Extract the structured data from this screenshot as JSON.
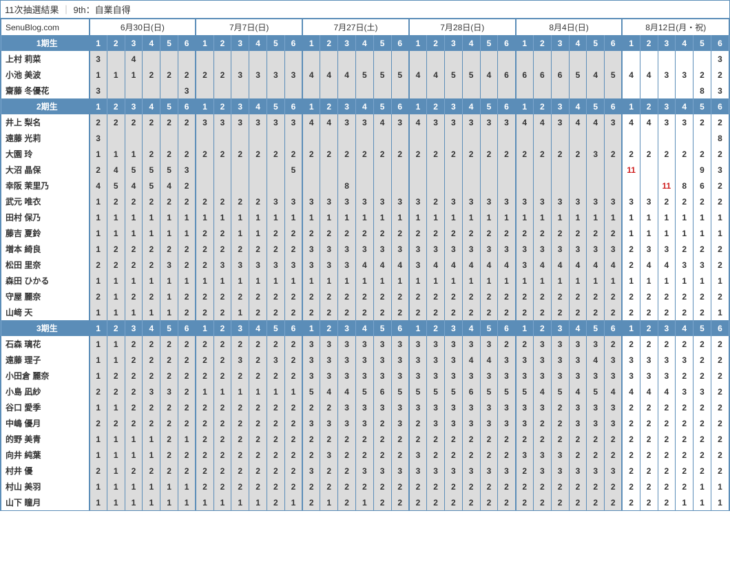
{
  "title_left": "11次抽選結果",
  "title_right": "9th：自業自得",
  "blog": "SenuBlog.com",
  "dates": [
    "6月30日(日)",
    "7月7日(日)",
    "7月27日(土)",
    "7月28日(日)",
    "8月4日(日)",
    "8月12日(月・祝)"
  ],
  "cols_per_date": 6,
  "white_date_index": 5,
  "generations": [
    {
      "label": "1期生",
      "members": [
        {
          "name": "上村 莉菜",
          "vals": [
            "3",
            "",
            "4",
            "",
            "",
            "",
            "",
            "",
            "",
            "",
            "",
            "",
            "",
            "",
            "",
            "",
            "",
            "",
            "",
            "",
            "",
            "",
            "",
            "",
            "",
            "",
            "",
            "",
            "",
            "",
            "",
            "",
            "",
            "",
            "",
            "3"
          ]
        },
        {
          "name": "小池 美波",
          "vals": [
            "1",
            "1",
            "1",
            "2",
            "2",
            "2",
            "2",
            "2",
            "3",
            "3",
            "3",
            "3",
            "4",
            "4",
            "4",
            "5",
            "5",
            "5",
            "4",
            "4",
            "5",
            "5",
            "4",
            "6",
            "6",
            "6",
            "6",
            "5",
            "4",
            "5",
            "4",
            "4",
            "3",
            "3",
            "2",
            "2"
          ]
        },
        {
          "name": "齋藤 冬優花",
          "vals": [
            "3",
            "",
            "",
            "",
            "",
            "3",
            "",
            "",
            "",
            "",
            "",
            "",
            "",
            "",
            "",
            "",
            "",
            "",
            "",
            "",
            "",
            "",
            "",
            "",
            "",
            "",
            "",
            "",
            "",
            "",
            "",
            "",
            "",
            "",
            "8",
            "3"
          ]
        }
      ]
    },
    {
      "label": "2期生",
      "members": [
        {
          "name": "井上 梨名",
          "vals": [
            "2",
            "2",
            "2",
            "2",
            "2",
            "2",
            "3",
            "3",
            "3",
            "3",
            "3",
            "3",
            "4",
            "4",
            "3",
            "3",
            "4",
            "3",
            "4",
            "3",
            "3",
            "3",
            "3",
            "3",
            "4",
            "4",
            "3",
            "4",
            "4",
            "3",
            "4",
            "4",
            "3",
            "3",
            "2",
            "2"
          ]
        },
        {
          "name": "遠藤 光莉",
          "vals": [
            "3",
            "",
            "",
            "",
            "",
            "",
            "",
            "",
            "",
            "",
            "",
            "",
            "",
            "",
            "",
            "",
            "",
            "",
            "",
            "",
            "",
            "",
            "",
            "",
            "",
            "",
            "",
            "",
            "",
            "",
            "",
            "",
            "",
            "",
            "",
            "8"
          ]
        },
        {
          "name": "大園 玲",
          "vals": [
            "1",
            "1",
            "1",
            "2",
            "2",
            "2",
            "2",
            "2",
            "2",
            "2",
            "2",
            "2",
            "2",
            "2",
            "2",
            "2",
            "2",
            "2",
            "2",
            "2",
            "2",
            "2",
            "2",
            "2",
            "2",
            "2",
            "2",
            "2",
            "3",
            "2",
            "2",
            "2",
            "2",
            "2",
            "2",
            "2"
          ]
        },
        {
          "name": "大沼 晶保",
          "vals": [
            "2",
            "4",
            "5",
            "5",
            "5",
            "3",
            "",
            "",
            "",
            "",
            "",
            "5",
            "",
            "",
            "",
            "",
            "",
            "",
            "",
            "",
            "",
            "",
            "",
            "",
            "",
            "",
            "",
            "",
            "",
            "",
            "11",
            "",
            "",
            "",
            "9",
            "3"
          ],
          "red": [
            30
          ]
        },
        {
          "name": "幸阪 茉里乃",
          "vals": [
            "4",
            "5",
            "4",
            "5",
            "4",
            "2",
            "",
            "",
            "",
            "",
            "",
            "",
            "",
            "",
            "8",
            "",
            "",
            "",
            "",
            "",
            "",
            "",
            "",
            "",
            "",
            "",
            "",
            "",
            "",
            "",
            "",
            "",
            "11",
            "8",
            "6",
            "2"
          ],
          "red": [
            32
          ]
        },
        {
          "name": "武元 唯衣",
          "vals": [
            "1",
            "2",
            "2",
            "2",
            "2",
            "2",
            "2",
            "2",
            "2",
            "2",
            "3",
            "3",
            "3",
            "3",
            "3",
            "3",
            "3",
            "3",
            "3",
            "2",
            "3",
            "3",
            "3",
            "3",
            "3",
            "3",
            "3",
            "3",
            "3",
            "3",
            "3",
            "3",
            "2",
            "2",
            "2",
            "2"
          ]
        },
        {
          "name": "田村 保乃",
          "vals": [
            "1",
            "1",
            "1",
            "1",
            "1",
            "1",
            "1",
            "1",
            "1",
            "1",
            "1",
            "1",
            "1",
            "1",
            "1",
            "1",
            "1",
            "1",
            "1",
            "1",
            "1",
            "1",
            "1",
            "1",
            "1",
            "1",
            "1",
            "1",
            "1",
            "1",
            "1",
            "1",
            "1",
            "1",
            "1",
            "1"
          ]
        },
        {
          "name": "藤吉 夏鈴",
          "vals": [
            "1",
            "1",
            "1",
            "1",
            "1",
            "1",
            "2",
            "2",
            "1",
            "1",
            "2",
            "2",
            "2",
            "2",
            "2",
            "2",
            "2",
            "2",
            "2",
            "2",
            "2",
            "2",
            "2",
            "2",
            "2",
            "2",
            "2",
            "2",
            "2",
            "2",
            "1",
            "1",
            "1",
            "1",
            "1",
            "1"
          ]
        },
        {
          "name": "増本 綺良",
          "vals": [
            "1",
            "2",
            "2",
            "2",
            "2",
            "2",
            "2",
            "2",
            "2",
            "2",
            "2",
            "2",
            "3",
            "3",
            "3",
            "3",
            "3",
            "3",
            "3",
            "3",
            "3",
            "3",
            "3",
            "3",
            "3",
            "3",
            "3",
            "3",
            "3",
            "3",
            "2",
            "3",
            "3",
            "2",
            "2",
            "2"
          ]
        },
        {
          "name": "松田 里奈",
          "vals": [
            "2",
            "2",
            "2",
            "2",
            "3",
            "2",
            "2",
            "3",
            "3",
            "3",
            "3",
            "3",
            "3",
            "3",
            "3",
            "4",
            "4",
            "4",
            "3",
            "4",
            "4",
            "4",
            "4",
            "4",
            "3",
            "4",
            "4",
            "4",
            "4",
            "4",
            "2",
            "4",
            "4",
            "3",
            "3",
            "2"
          ]
        },
        {
          "name": "森田 ひかる",
          "vals": [
            "1",
            "1",
            "1",
            "1",
            "1",
            "1",
            "1",
            "1",
            "1",
            "1",
            "1",
            "1",
            "1",
            "1",
            "1",
            "1",
            "1",
            "1",
            "1",
            "1",
            "1",
            "1",
            "1",
            "1",
            "1",
            "1",
            "1",
            "1",
            "1",
            "1",
            "1",
            "1",
            "1",
            "1",
            "1",
            "1"
          ]
        },
        {
          "name": "守屋 麗奈",
          "vals": [
            "2",
            "1",
            "2",
            "2",
            "1",
            "2",
            "2",
            "2",
            "2",
            "2",
            "2",
            "2",
            "2",
            "2",
            "2",
            "2",
            "2",
            "2",
            "2",
            "2",
            "2",
            "2",
            "2",
            "2",
            "2",
            "2",
            "2",
            "2",
            "2",
            "2",
            "2",
            "2",
            "2",
            "2",
            "2",
            "2"
          ]
        },
        {
          "name": "山﨑 天",
          "vals": [
            "1",
            "1",
            "1",
            "1",
            "1",
            "2",
            "2",
            "2",
            "1",
            "2",
            "2",
            "2",
            "2",
            "2",
            "2",
            "2",
            "2",
            "2",
            "2",
            "2",
            "2",
            "2",
            "2",
            "2",
            "2",
            "2",
            "2",
            "2",
            "2",
            "2",
            "2",
            "2",
            "2",
            "2",
            "2",
            "1"
          ]
        }
      ]
    },
    {
      "label": "3期生",
      "members": [
        {
          "name": "石森 璃花",
          "vals": [
            "1",
            "1",
            "2",
            "2",
            "2",
            "2",
            "2",
            "2",
            "2",
            "2",
            "2",
            "2",
            "3",
            "3",
            "3",
            "3",
            "3",
            "3",
            "3",
            "3",
            "3",
            "3",
            "3",
            "2",
            "2",
            "3",
            "3",
            "3",
            "3",
            "2",
            "2",
            "2",
            "2",
            "2",
            "2",
            "2"
          ]
        },
        {
          "name": "遠藤 理子",
          "vals": [
            "1",
            "1",
            "2",
            "2",
            "2",
            "2",
            "2",
            "2",
            "3",
            "2",
            "3",
            "2",
            "3",
            "3",
            "3",
            "3",
            "3",
            "3",
            "3",
            "3",
            "3",
            "4",
            "4",
            "3",
            "3",
            "3",
            "3",
            "3",
            "4",
            "3",
            "3",
            "3",
            "3",
            "3",
            "2",
            "2"
          ]
        },
        {
          "name": "小田倉 麗奈",
          "vals": [
            "1",
            "2",
            "2",
            "2",
            "2",
            "2",
            "2",
            "2",
            "2",
            "2",
            "2",
            "2",
            "3",
            "3",
            "3",
            "3",
            "3",
            "3",
            "3",
            "3",
            "3",
            "3",
            "3",
            "3",
            "3",
            "3",
            "3",
            "3",
            "3",
            "3",
            "3",
            "3",
            "3",
            "2",
            "2",
            "2"
          ]
        },
        {
          "name": "小島 凪紗",
          "vals": [
            "2",
            "2",
            "2",
            "3",
            "3",
            "2",
            "1",
            "1",
            "1",
            "1",
            "1",
            "1",
            "5",
            "4",
            "4",
            "5",
            "6",
            "5",
            "5",
            "5",
            "5",
            "6",
            "5",
            "5",
            "5",
            "4",
            "5",
            "4",
            "5",
            "4",
            "4",
            "4",
            "4",
            "3",
            "3",
            "2"
          ]
        },
        {
          "name": "谷口 愛季",
          "vals": [
            "1",
            "1",
            "2",
            "2",
            "2",
            "2",
            "2",
            "2",
            "2",
            "2",
            "2",
            "2",
            "2",
            "2",
            "3",
            "3",
            "3",
            "3",
            "3",
            "3",
            "3",
            "3",
            "3",
            "3",
            "3",
            "3",
            "2",
            "3",
            "3",
            "3",
            "2",
            "2",
            "2",
            "2",
            "2",
            "2"
          ]
        },
        {
          "name": "中嶋 優月",
          "vals": [
            "2",
            "2",
            "2",
            "2",
            "2",
            "2",
            "2",
            "2",
            "2",
            "2",
            "2",
            "2",
            "3",
            "3",
            "3",
            "3",
            "2",
            "3",
            "2",
            "3",
            "3",
            "3",
            "3",
            "3",
            "3",
            "2",
            "2",
            "3",
            "3",
            "3",
            "2",
            "2",
            "2",
            "2",
            "2",
            "2"
          ]
        },
        {
          "name": "的野 美青",
          "vals": [
            "1",
            "1",
            "1",
            "1",
            "2",
            "1",
            "2",
            "2",
            "2",
            "2",
            "2",
            "2",
            "2",
            "2",
            "2",
            "2",
            "2",
            "2",
            "2",
            "2",
            "2",
            "2",
            "2",
            "2",
            "2",
            "2",
            "2",
            "2",
            "2",
            "2",
            "2",
            "2",
            "2",
            "2",
            "2",
            "2"
          ]
        },
        {
          "name": "向井 純葉",
          "vals": [
            "1",
            "1",
            "1",
            "1",
            "2",
            "2",
            "2",
            "2",
            "2",
            "2",
            "2",
            "2",
            "2",
            "3",
            "2",
            "2",
            "2",
            "2",
            "3",
            "2",
            "2",
            "2",
            "2",
            "2",
            "3",
            "3",
            "3",
            "2",
            "2",
            "2",
            "2",
            "2",
            "2",
            "2",
            "2",
            "2"
          ]
        },
        {
          "name": "村井 優",
          "vals": [
            "2",
            "1",
            "2",
            "2",
            "2",
            "2",
            "2",
            "2",
            "2",
            "2",
            "2",
            "2",
            "3",
            "2",
            "2",
            "3",
            "3",
            "3",
            "3",
            "3",
            "3",
            "3",
            "3",
            "3",
            "2",
            "3",
            "3",
            "3",
            "3",
            "3",
            "2",
            "2",
            "2",
            "2",
            "2",
            "2"
          ]
        },
        {
          "name": "村山 美羽",
          "vals": [
            "1",
            "1",
            "1",
            "1",
            "1",
            "1",
            "2",
            "2",
            "2",
            "2",
            "2",
            "2",
            "2",
            "2",
            "2",
            "2",
            "2",
            "2",
            "2",
            "2",
            "2",
            "2",
            "2",
            "2",
            "2",
            "2",
            "2",
            "2",
            "2",
            "2",
            "2",
            "2",
            "2",
            "2",
            "1",
            "1"
          ]
        },
        {
          "name": "山下 瞳月",
          "vals": [
            "1",
            "1",
            "1",
            "1",
            "1",
            "1",
            "1",
            "1",
            "1",
            "1",
            "2",
            "1",
            "2",
            "1",
            "2",
            "1",
            "2",
            "2",
            "2",
            "2",
            "2",
            "2",
            "2",
            "2",
            "2",
            "2",
            "2",
            "2",
            "2",
            "2",
            "2",
            "2",
            "2",
            "1",
            "1",
            "1"
          ]
        }
      ]
    }
  ]
}
